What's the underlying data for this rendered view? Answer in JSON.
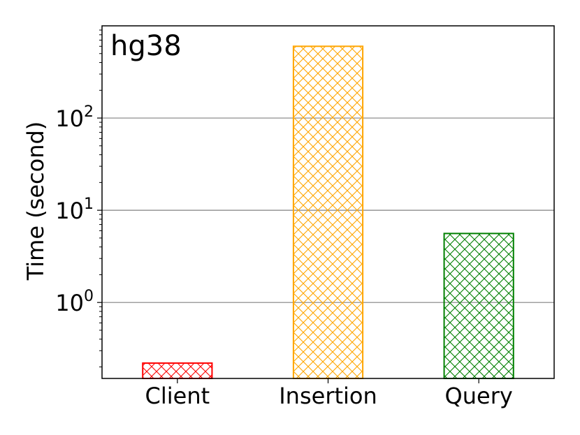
{
  "chart_data": {
    "type": "bar",
    "annotation": "hg38",
    "ylabel": "Time (second)",
    "xlabel": "",
    "yscale": "log",
    "ylim": [
      0.15,
      1000
    ],
    "grid": true,
    "categories": [
      "Client",
      "Insertion",
      "Query"
    ],
    "values": [
      0.22,
      600,
      5.6
    ],
    "colors": [
      "#ff0000",
      "#ffa500",
      "#008000"
    ],
    "hatch": "cross",
    "yticks": [
      {
        "value": 1,
        "base": "10",
        "exp": "0"
      },
      {
        "value": 10,
        "base": "10",
        "exp": "1"
      },
      {
        "value": 100,
        "base": "10",
        "exp": "2"
      }
    ]
  }
}
